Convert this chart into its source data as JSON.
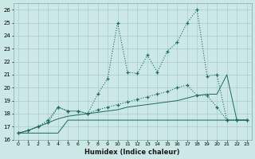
{
  "xlabel": "Humidex (Indice chaleur)",
  "xlim": [
    -0.5,
    23.5
  ],
  "ylim": [
    16,
    26.5
  ],
  "bg_color": "#cce8e6",
  "grid_color": "#aaccca",
  "line_color": "#1a6b5a",
  "line1_x": [
    0,
    1,
    2,
    3,
    4,
    5,
    6,
    7,
    8,
    9,
    10,
    11,
    12,
    13,
    14,
    15,
    16,
    17,
    18,
    19,
    20,
    21,
    22,
    23
  ],
  "line1_y": [
    16.5,
    16.5,
    16.5,
    16.5,
    16.5,
    17.5,
    17.5,
    17.5,
    17.5,
    17.5,
    17.5,
    17.5,
    17.5,
    17.5,
    17.5,
    17.5,
    17.5,
    17.5,
    17.5,
    17.5,
    17.5,
    17.5,
    17.5,
    17.5
  ],
  "line2_x": [
    0,
    1,
    2,
    3,
    4,
    5,
    6,
    7,
    8,
    9,
    10,
    11,
    12,
    13,
    14,
    15,
    16,
    17,
    18,
    19,
    20,
    21,
    22,
    23
  ],
  "line2_y": [
    16.5,
    16.7,
    17.0,
    17.3,
    17.6,
    17.8,
    17.9,
    18.0,
    18.1,
    18.2,
    18.3,
    18.5,
    18.6,
    18.7,
    18.8,
    18.9,
    19.0,
    19.2,
    19.4,
    19.5,
    19.5,
    21.0,
    17.5,
    17.5
  ],
  "line3_x": [
    0,
    1,
    2,
    3,
    4,
    5,
    6,
    7,
    8,
    9,
    10,
    11,
    12,
    13,
    14,
    15,
    16,
    17,
    18,
    19,
    20,
    21,
    22,
    23
  ],
  "line3_y": [
    16.5,
    16.7,
    17.0,
    17.3,
    18.5,
    18.2,
    18.2,
    18.0,
    18.3,
    18.5,
    18.7,
    18.9,
    19.1,
    19.3,
    19.5,
    19.7,
    20.0,
    20.2,
    19.4,
    19.4,
    18.5,
    17.5,
    17.5,
    17.5
  ],
  "line4_x": [
    0,
    1,
    2,
    3,
    4,
    5,
    6,
    7,
    8,
    9,
    10,
    11,
    12,
    13,
    14,
    15,
    16,
    17,
    18,
    19,
    20,
    21,
    22,
    23
  ],
  "line4_y": [
    16.5,
    16.7,
    17.0,
    17.5,
    18.5,
    18.2,
    18.2,
    18.0,
    19.5,
    20.7,
    25.0,
    21.2,
    21.1,
    22.5,
    21.2,
    22.8,
    23.5,
    25.0,
    26.0,
    20.9,
    21.0,
    17.5,
    17.5,
    17.5
  ]
}
